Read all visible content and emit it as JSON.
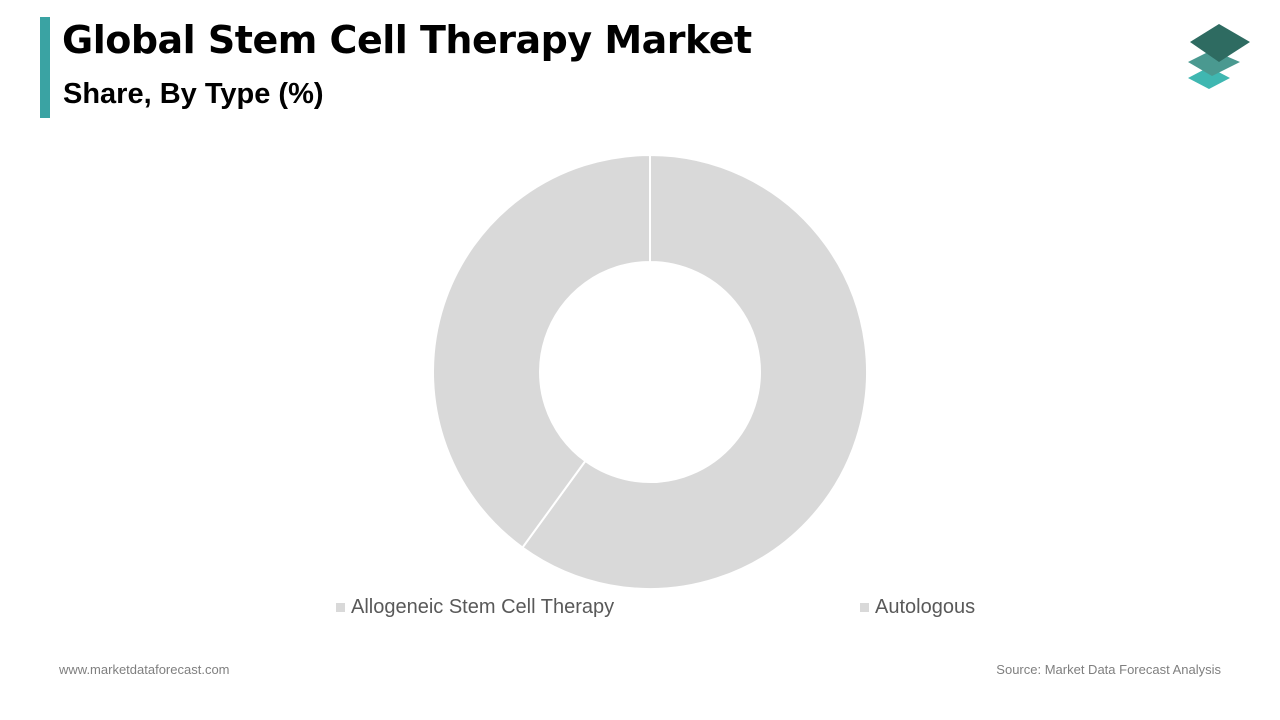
{
  "header": {
    "title": "Global Stem Cell Therapy Market",
    "subtitle": "Share, By Type (%)"
  },
  "colors": {
    "accent": "#3aa3a3",
    "slice_fill": "#d9d9d9",
    "logo_dark": "#2e6b61",
    "logo_mid": "#4a9990",
    "logo_light": "#3fb7b1"
  },
  "logo": {
    "icon": "stacked-layers-icon"
  },
  "chart_data": {
    "type": "pie",
    "donut": true,
    "title": "Global Stem Cell Therapy Market",
    "subtitle": "Share, By Type (%)",
    "categories": [
      "Allogeneic Stem Cell Therapy",
      "Autologous"
    ],
    "values": [
      60,
      40
    ],
    "legend_position": "bottom"
  },
  "footer": {
    "website": "www.marketdataforecast.com",
    "source": "Source: Market Data Forecast Analysis"
  }
}
